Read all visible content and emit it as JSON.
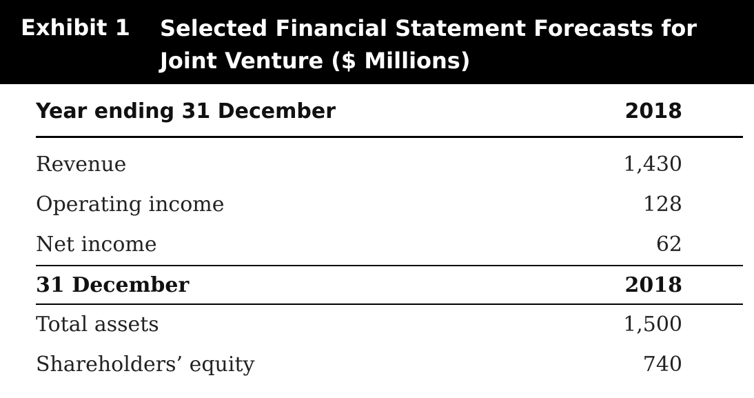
{
  "exhibit": {
    "label": "Exhibit 1",
    "title": "Selected Financial Statement Forecasts for Joint Venture ($ Millions)"
  },
  "income_section": {
    "header_label": "Year ending 31 December",
    "header_year": "2018",
    "rows": [
      {
        "label": "Revenue",
        "value": "1,430"
      },
      {
        "label": "Operating income",
        "value": "128"
      },
      {
        "label": "Net income",
        "value": "62"
      }
    ]
  },
  "balance_section": {
    "header_label": "31 December",
    "header_year": "2018",
    "rows": [
      {
        "label": "Total assets",
        "value": "1,500"
      },
      {
        "label": "Shareholders’ equity",
        "value": "740"
      }
    ]
  }
}
